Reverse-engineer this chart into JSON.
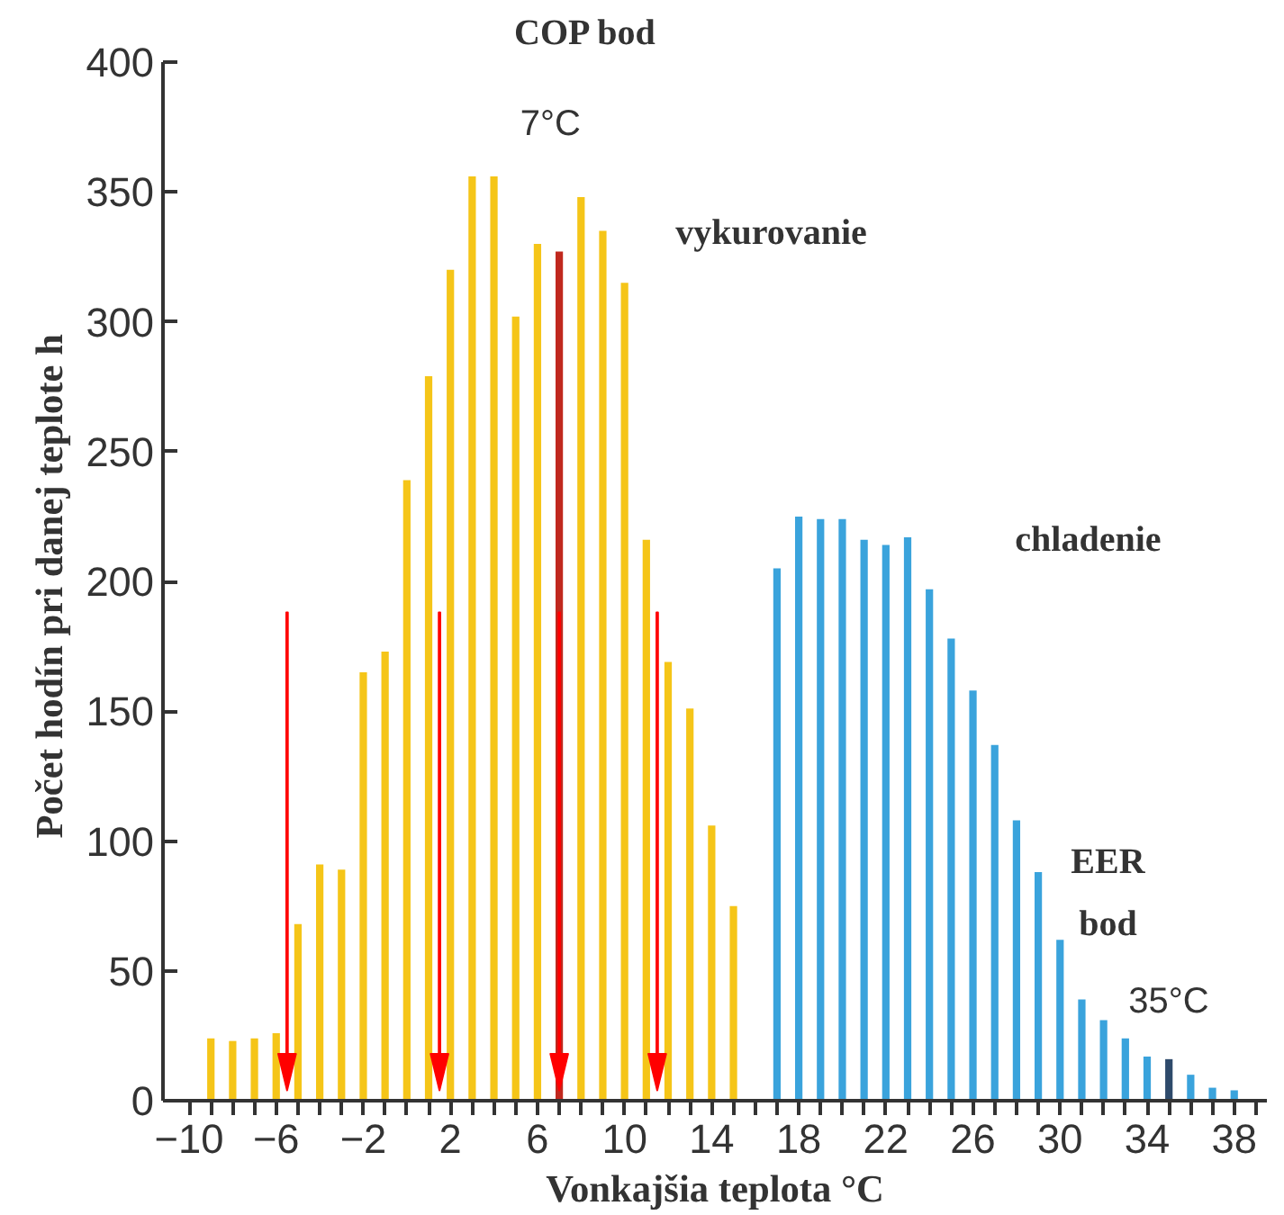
{
  "chart_data": {
    "type": "bar",
    "xlabel": "Vonkajšia teplota °C",
    "ylabel": "Počet hodín pri danej teplote  h",
    "series": [
      {
        "x": [
          -9,
          -8,
          -7,
          -6,
          -5,
          -4,
          -3,
          -2,
          -1,
          0,
          1,
          2,
          3,
          4,
          5,
          6,
          7,
          8,
          9,
          10,
          11,
          12,
          13,
          14,
          15
        ],
        "values": [
          24,
          23,
          24,
          26,
          68,
          91,
          89,
          165,
          173,
          239,
          279,
          320,
          356,
          356,
          302,
          330,
          327,
          348,
          335,
          315,
          216,
          169,
          151,
          106,
          75
        ],
        "colors": [
          "#f5c518",
          "#f5c518",
          "#f5c518",
          "#f5c518",
          "#f5c518",
          "#f5c518",
          "#f5c518",
          "#f5c518",
          "#f5c518",
          "#f5c518",
          "#f5c518",
          "#f5c518",
          "#f5c518",
          "#f5c518",
          "#f5c518",
          "#f5c518",
          "#c0281e",
          "#f5c518",
          "#f5c518",
          "#f5c518",
          "#f5c518",
          "#f5c518",
          "#f5c518",
          "#f5c518",
          "#f5c518"
        ]
      },
      {
        "x": [
          17,
          18,
          19,
          20,
          21,
          22,
          23,
          24,
          25,
          26,
          27,
          28,
          29,
          30,
          31,
          32,
          33,
          34,
          35,
          36,
          37,
          38
        ],
        "values": [
          205,
          225,
          224,
          224,
          216,
          214,
          217,
          197,
          178,
          158,
          137,
          108,
          88,
          62,
          39,
          31,
          24,
          17,
          16,
          10,
          5,
          4
        ],
        "colors": [
          "#3aa3dc",
          "#3aa3dc",
          "#3aa3dc",
          "#3aa3dc",
          "#3aa3dc",
          "#3aa3dc",
          "#3aa3dc",
          "#3aa3dc",
          "#3aa3dc",
          "#3aa3dc",
          "#3aa3dc",
          "#3aa3dc",
          "#3aa3dc",
          "#3aa3dc",
          "#3aa3dc",
          "#3aa3dc",
          "#3aa3dc",
          "#3aa3dc",
          "#2e4a6b",
          "#3aa3dc",
          "#3aa3dc",
          "#3aa3dc"
        ]
      }
    ],
    "ylim": [
      0,
      400
    ],
    "yticks": [
      0,
      50,
      100,
      150,
      200,
      250,
      300,
      350,
      400
    ],
    "xlim": [
      -11.2,
      39.5
    ],
    "xticks": [
      -10,
      {
        "value": -9,
        "label": null
      },
      {
        "value": -8,
        "label": null
      },
      {
        "value": -7,
        "label": null
      },
      -6,
      {
        "value": -5,
        "label": null
      },
      {
        "value": -4,
        "label": null
      },
      {
        "value": -3,
        "label": null
      },
      -2,
      {
        "value": -1,
        "label": null
      },
      {
        "value": 0,
        "label": null
      },
      {
        "value": 1,
        "label": null
      },
      2,
      {
        "value": 3,
        "label": null
      },
      {
        "value": 4,
        "label": null
      },
      {
        "value": 5,
        "label": null
      },
      6,
      {
        "value": 7,
        "label": null
      },
      {
        "value": 8,
        "label": null
      },
      {
        "value": 9,
        "label": null
      },
      10,
      {
        "value": 11,
        "label": null
      },
      {
        "value": 12,
        "label": null
      },
      {
        "value": 13,
        "label": null
      },
      14,
      {
        "value": 15,
        "label": null
      },
      {
        "value": 16,
        "label": null
      },
      {
        "value": 17,
        "label": null
      },
      18,
      {
        "value": 19,
        "label": null
      },
      {
        "value": 20,
        "label": null
      },
      {
        "value": 21,
        "label": null
      },
      22,
      {
        "value": 23,
        "label": null
      },
      {
        "value": 24,
        "label": null
      },
      {
        "value": 25,
        "label": null
      },
      26,
      {
        "value": 27,
        "label": null
      },
      {
        "value": 28,
        "label": null
      },
      {
        "value": 29,
        "label": null
      },
      30,
      {
        "value": 31,
        "label": null
      },
      {
        "value": 32,
        "label": null
      },
      {
        "value": 33,
        "label": null
      },
      34,
      {
        "value": 35,
        "label": null
      },
      {
        "value": 36,
        "label": null
      },
      {
        "value": 37,
        "label": null
      },
      38,
      {
        "value": 39,
        "label": null
      }
    ],
    "grid": false,
    "ref_lines": [
      {
        "axis": "x",
        "value": -5.5,
        "color": "#ff0000"
      },
      {
        "axis": "x",
        "value": 1.5,
        "color": "#ff0000"
      },
      {
        "axis": "x",
        "value": 7,
        "color": "#ff0000"
      },
      {
        "axis": "x",
        "value": 11.5,
        "color": "#ff0000"
      }
    ],
    "annotations": [
      "COP bod",
      "7°C",
      "vykurovanie",
      "chladenie",
      "EER",
      "bod",
      "35°C"
    ]
  }
}
